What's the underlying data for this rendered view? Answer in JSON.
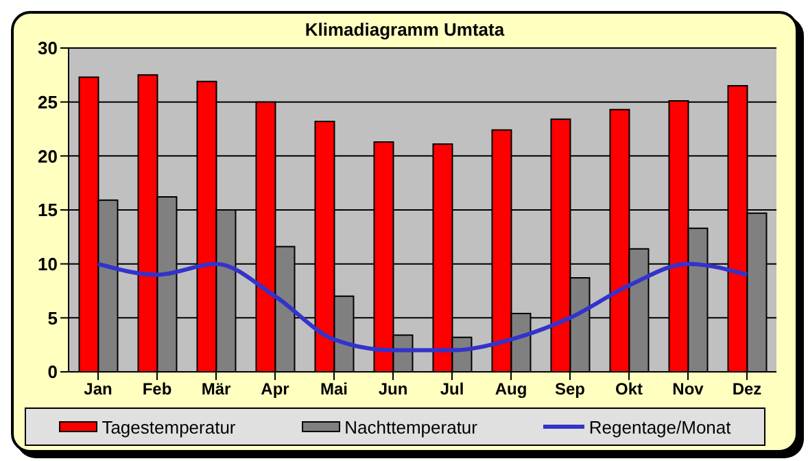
{
  "chart_data": {
    "type": "bar",
    "title": "Klimadiagramm Umtata",
    "categories": [
      "Jan",
      "Feb",
      "Mär",
      "Apr",
      "Mai",
      "Jun",
      "Jul",
      "Aug",
      "Sep",
      "Okt",
      "Nov",
      "Dez"
    ],
    "series": [
      {
        "name": "Tagestemperatur",
        "color": "#ff0000",
        "values": [
          27.3,
          27.5,
          26.9,
          25.0,
          23.2,
          21.3,
          21.1,
          22.4,
          23.4,
          24.3,
          25.1,
          26.5
        ]
      },
      {
        "name": "Nachttemperatur",
        "color": "#808080",
        "values": [
          15.9,
          16.2,
          15.0,
          11.6,
          7.0,
          3.4,
          3.2,
          5.4,
          8.7,
          11.4,
          13.3,
          14.7
        ]
      },
      {
        "name": "Regentage/Monat",
        "type": "line",
        "color": "#3333cc",
        "values": [
          10,
          9,
          10,
          7,
          3,
          2,
          2,
          3,
          5,
          8,
          10,
          9
        ]
      }
    ],
    "ylim": [
      0,
      30
    ],
    "yticks": [
      0,
      5,
      10,
      15,
      20,
      25,
      30
    ],
    "grid": "y",
    "legend": "bottom",
    "marker": "none"
  }
}
